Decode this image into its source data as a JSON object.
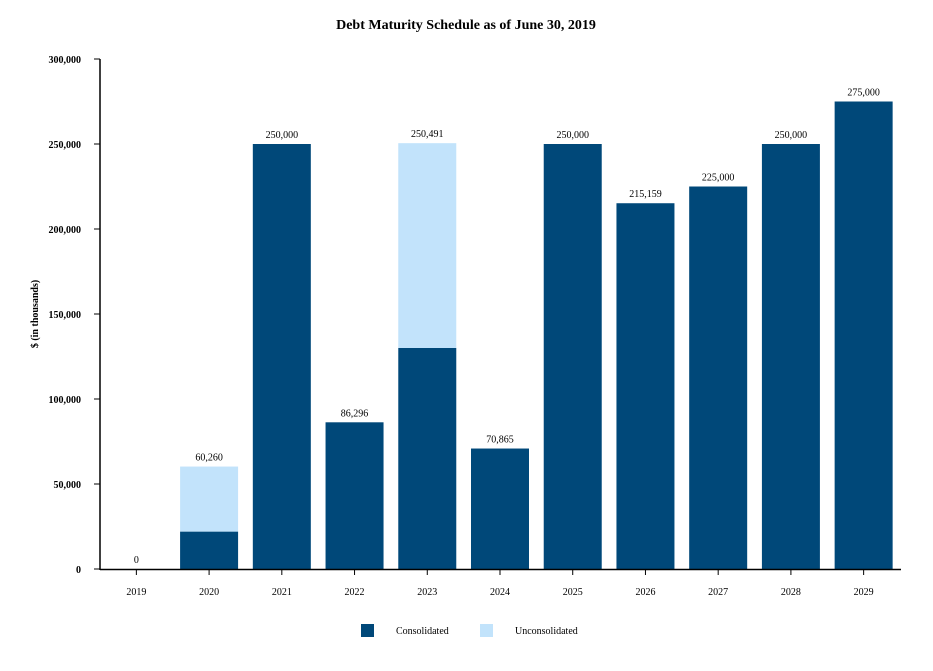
{
  "chart_data": {
    "type": "bar",
    "stacked": true,
    "title": "Debt Maturity Schedule as of June 30, 2019",
    "xlabel": "",
    "ylabel": "$ (in thousands)",
    "ylim": [
      0,
      300000
    ],
    "yticks": [
      0,
      50000,
      100000,
      150000,
      200000,
      250000,
      300000
    ],
    "ytick_labels": [
      "0",
      "50,000",
      "100,000",
      "150,000",
      "200,000",
      "250,000",
      "300,000"
    ],
    "categories": [
      "2019",
      "2020",
      "2021",
      "2022",
      "2023",
      "2024",
      "2025",
      "2026",
      "2027",
      "2028",
      "2029"
    ],
    "series": [
      {
        "name": "Consolidated",
        "color": "#004879",
        "values": [
          0,
          22000,
          250000,
          86296,
          130000,
          70865,
          250000,
          215159,
          225000,
          250000,
          275000
        ]
      },
      {
        "name": "Unconsolidated",
        "color": "#c2e3fb",
        "values": [
          0,
          38260,
          0,
          0,
          120491,
          0,
          0,
          0,
          0,
          0,
          0
        ]
      }
    ],
    "total_labels": [
      "0",
      "60,260",
      "250,000",
      "86,296",
      "250,491",
      "70,865",
      "250,000",
      "215,159",
      "225,000",
      "250,000",
      "275,000"
    ],
    "grid": false,
    "legend_position": "bottom-center"
  }
}
